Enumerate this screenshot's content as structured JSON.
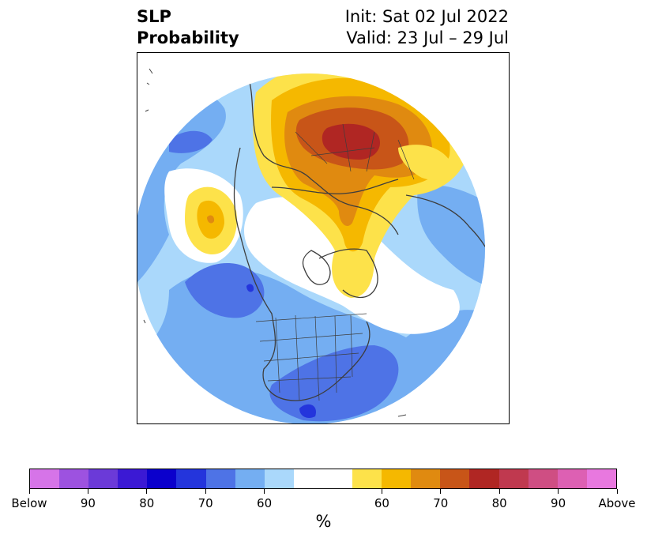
{
  "title": {
    "left_line1": "SLP",
    "left_line2": "Probability",
    "right_line1": "Init: Sat 02 Jul 2022",
    "right_line2": "Valid: 23 Jul – 29 Jul"
  },
  "colorbar": {
    "colors": [
      "#d674e8",
      "#9d52e0",
      "#6b3ad8",
      "#3b19d4",
      "#0b00cc",
      "#2435dc",
      "#4e73e6",
      "#74aef2",
      "#aad8fb",
      "#ffffff",
      "#ffffff",
      "#fde24a",
      "#f5b800",
      "#e08a10",
      "#c85518",
      "#b02623",
      "#c0394f",
      "#cf4e83",
      "#dd60b3",
      "#e878df"
    ],
    "tick_labels": [
      "Below",
      "90",
      "80",
      "70",
      "60",
      "60",
      "70",
      "80",
      "90",
      "Above"
    ],
    "label": "%"
  },
  "map": {
    "projection": "north-polar-stereographic",
    "boundaries": "country and US state outlines",
    "fill_palette": {
      "blue_light": "#aad8fb",
      "blue_mid": "#74aef2",
      "blue_dark": "#4e73e6",
      "blue_deep": "#2435dc",
      "yellow": "#fde24a",
      "gold": "#f5b800",
      "orange": "#e08a10",
      "rust": "#c85518",
      "red": "#b02623"
    }
  }
}
